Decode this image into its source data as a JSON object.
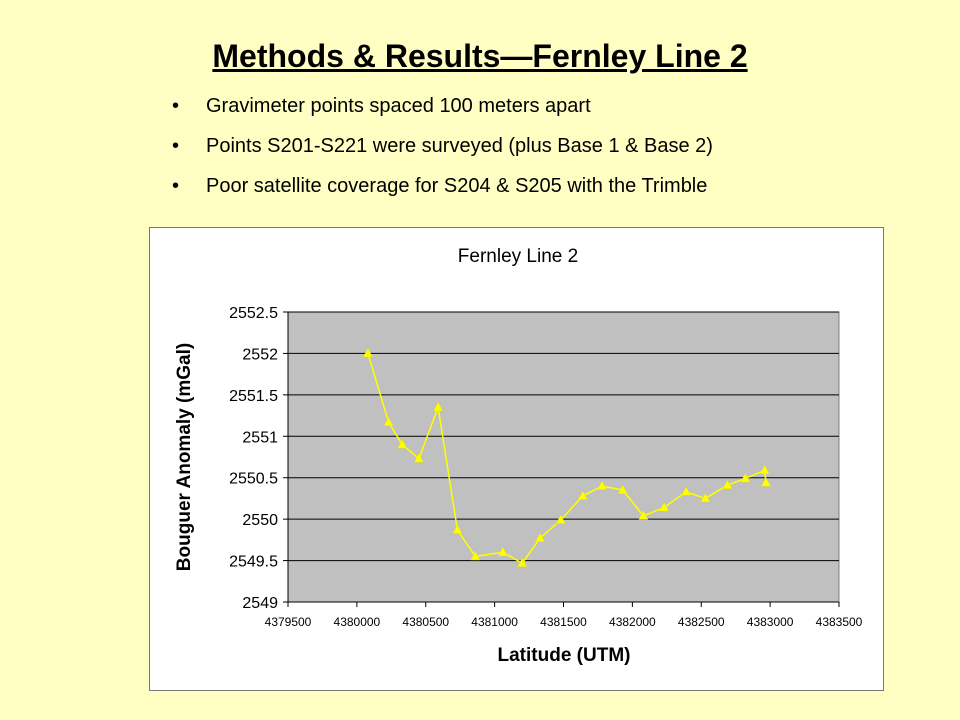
{
  "slide": {
    "title": "Methods & Results—Fernley Line 2",
    "bullets": [
      "Gravimeter points spaced 100 meters apart",
      "Points S201-S221 were surveyed (plus Base 1 & Base 2)",
      "Poor satellite coverage for S204 & S205 with the Trimble"
    ]
  },
  "colors": {
    "background": "#ffffc3",
    "plot_area": "#c0c0c0",
    "series": "#ffff00"
  },
  "chart_data": {
    "type": "line",
    "title": "Fernley Line 2",
    "xlabel": "Latitude (UTM)",
    "ylabel": "Bouguer Anomaly (mGal)",
    "xlim": [
      4379500,
      4383500
    ],
    "ylim": [
      2549,
      2552.5
    ],
    "x_ticks": [
      "4379500",
      "4380000",
      "4380500",
      "4381000",
      "4381500",
      "4382000",
      "4382500",
      "4383000",
      "4383500"
    ],
    "y_ticks": [
      "2549",
      "2549.5",
      "2550",
      "2550.5",
      "2551",
      "2551.5",
      "2552",
      "2552.5"
    ],
    "grid": "horizontal",
    "marker": "triangle",
    "series": [
      {
        "x": [
          4380080,
          4380230,
          4380330,
          4380450,
          4380590,
          4380730,
          4380860,
          4381060,
          4381200,
          4381330,
          4381480,
          4381640,
          4381780,
          4381930,
          4382080,
          4382230,
          4382390,
          4382530,
          4382690,
          4382820,
          4382960,
          4382970
        ],
        "y": [
          2552.0,
          2551.17,
          2550.9,
          2550.73,
          2551.35,
          2549.87,
          2549.55,
          2549.6,
          2549.47,
          2549.77,
          2549.99,
          2550.28,
          2550.4,
          2550.35,
          2550.04,
          2550.14,
          2550.33,
          2550.25,
          2550.41,
          2550.49,
          2550.59,
          2550.44
        ]
      }
    ]
  }
}
